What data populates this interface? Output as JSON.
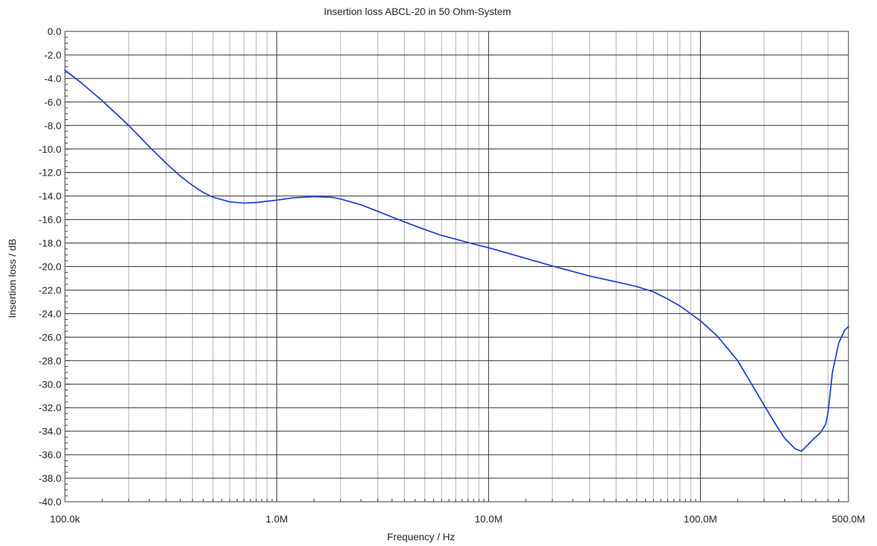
{
  "chart_data": {
    "type": "line",
    "title": "Insertion loss ABCL-20 in 50 Ohm-System",
    "xlabel": "Frequency / Hz",
    "ylabel": "Insertion loss / dB",
    "x_scale": "log",
    "xlim": [
      100000,
      500000000
    ],
    "ylim": [
      -40,
      0
    ],
    "y_ticks": [
      0,
      -2,
      -4,
      -6,
      -8,
      -10,
      -12,
      -14,
      -16,
      -18,
      -20,
      -22,
      -24,
      -26,
      -28,
      -30,
      -32,
      -34,
      -36,
      -38,
      -40
    ],
    "y_tick_labels": [
      "0.0",
      "-2.0",
      "-4.0",
      "-6.0",
      "-8.0",
      "-10.0",
      "-12.0",
      "-14.0",
      "-16.0",
      "-18.0",
      "-20.0",
      "-22.0",
      "-24.0",
      "-26.0",
      "-28.0",
      "-30.0",
      "-32.0",
      "-34.0",
      "-36.0",
      "-38.0",
      "-40.0"
    ],
    "x_ticks": [
      100000,
      1000000,
      10000000,
      100000000,
      500000000
    ],
    "x_tick_labels": [
      "100.0k",
      "1.0M",
      "10.0M",
      "100.0M",
      "500.0M"
    ],
    "grid": true,
    "series": [
      {
        "color": "#1f3fcc",
        "x": [
          100000,
          120000,
          150000,
          200000,
          250000,
          300000,
          350000,
          400000,
          450000,
          500000,
          600000,
          700000,
          800000,
          1000000,
          1200000,
          1500000,
          1800000,
          2000000,
          2500000,
          3000000,
          4000000,
          5000000,
          6000000,
          8000000,
          10000000,
          15000000,
          20000000,
          30000000,
          40000000,
          50000000,
          60000000,
          70000000,
          80000000,
          100000000,
          120000000,
          150000000,
          200000000,
          230000000,
          250000000,
          280000000,
          300000000,
          320000000,
          340000000,
          350000000,
          370000000,
          390000000,
          400000000,
          420000000,
          450000000,
          480000000,
          500000000
        ],
        "y": [
          -3.3,
          -4.4,
          -5.9,
          -8.0,
          -9.8,
          -11.2,
          -12.3,
          -13.1,
          -13.7,
          -14.1,
          -14.5,
          -14.6,
          -14.55,
          -14.35,
          -14.15,
          -14.05,
          -14.1,
          -14.25,
          -14.75,
          -15.3,
          -16.2,
          -16.85,
          -17.35,
          -17.95,
          -18.4,
          -19.3,
          -19.95,
          -20.8,
          -21.3,
          -21.7,
          -22.15,
          -22.75,
          -23.35,
          -24.6,
          -25.9,
          -28.0,
          -31.8,
          -33.6,
          -34.6,
          -35.5,
          -35.7,
          -35.2,
          -34.7,
          -34.5,
          -34.1,
          -33.4,
          -32.5,
          -29.0,
          -26.5,
          -25.4,
          -25.1
        ]
      }
    ]
  }
}
